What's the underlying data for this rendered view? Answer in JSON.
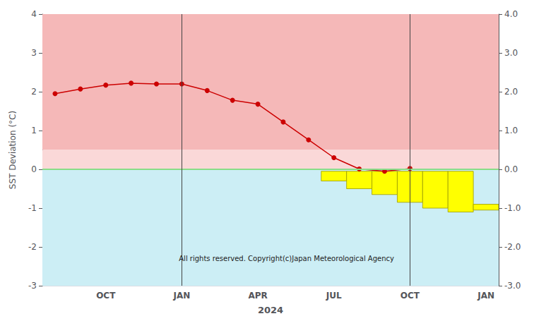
{
  "chart_data": {
    "type": "line",
    "xlabel": "2024",
    "ylabel": "SST Deviation (°C)",
    "categories": [
      null,
      null,
      "OCT",
      null,
      null,
      "JAN",
      null,
      null,
      "APR",
      null,
      null,
      "JUL",
      null,
      null,
      "OCT",
      null,
      null,
      "JAN"
    ],
    "series": [
      {
        "type": "range_bar",
        "color": "#ffff00",
        "low": [
          null,
          null,
          null,
          null,
          null,
          null,
          null,
          null,
          null,
          null,
          null,
          -0.3,
          -0.5,
          -0.65,
          -0.85,
          -1.0,
          -1.1,
          -1.05
        ],
        "high": [
          null,
          null,
          null,
          null,
          null,
          null,
          null,
          null,
          null,
          null,
          null,
          -0.05,
          -0.05,
          -0.05,
          -0.05,
          -0.05,
          -0.05,
          -0.9
        ]
      },
      {
        "type": "line",
        "color": "#cc0000",
        "marker": "circle",
        "values": [
          1.95,
          2.07,
          2.17,
          2.22,
          2.2,
          2.2,
          2.03,
          1.78,
          1.68,
          1.22,
          0.76,
          0.3,
          0.01,
          -0.05,
          0.02,
          null,
          null,
          null
        ]
      }
    ],
    "ylim": [
      -3.0,
      4.0
    ],
    "yticks": [
      -3,
      -2,
      -1,
      0,
      1,
      2,
      3,
      4
    ],
    "y2lim": [
      -3.0,
      4.0
    ],
    "y2ticks": [
      {
        "value": -3,
        "label": "-3.0"
      },
      {
        "value": -2,
        "label": "-2.0"
      },
      {
        "value": -1,
        "label": "-1.0"
      },
      {
        "value": 0,
        "label": "0.0"
      },
      {
        "value": 1,
        "label": "1.0"
      },
      {
        "value": 2,
        "label": "2.0"
      },
      {
        "value": 3,
        "label": "3.0"
      },
      {
        "value": 4,
        "label": "4.0"
      }
    ],
    "grid": true,
    "bands": [
      {
        "from": 0.5,
        "to": 4.0,
        "color": "#f5b8b8"
      },
      {
        "from": 0.0,
        "to": 0.5,
        "color": "#fad8d8"
      },
      {
        "from": -3.0,
        "to": 0.0,
        "color": "#cceef5"
      }
    ],
    "hlines": [
      {
        "value": 0,
        "color": "#88dd88"
      }
    ],
    "vlines": [
      {
        "at": 5,
        "color": "#444444"
      },
      {
        "at": 14,
        "color": "#444444"
      }
    ],
    "annotations": [
      {
        "text": "All rights reserved. Copyright(c)Japan Meteorological Agency"
      }
    ]
  }
}
